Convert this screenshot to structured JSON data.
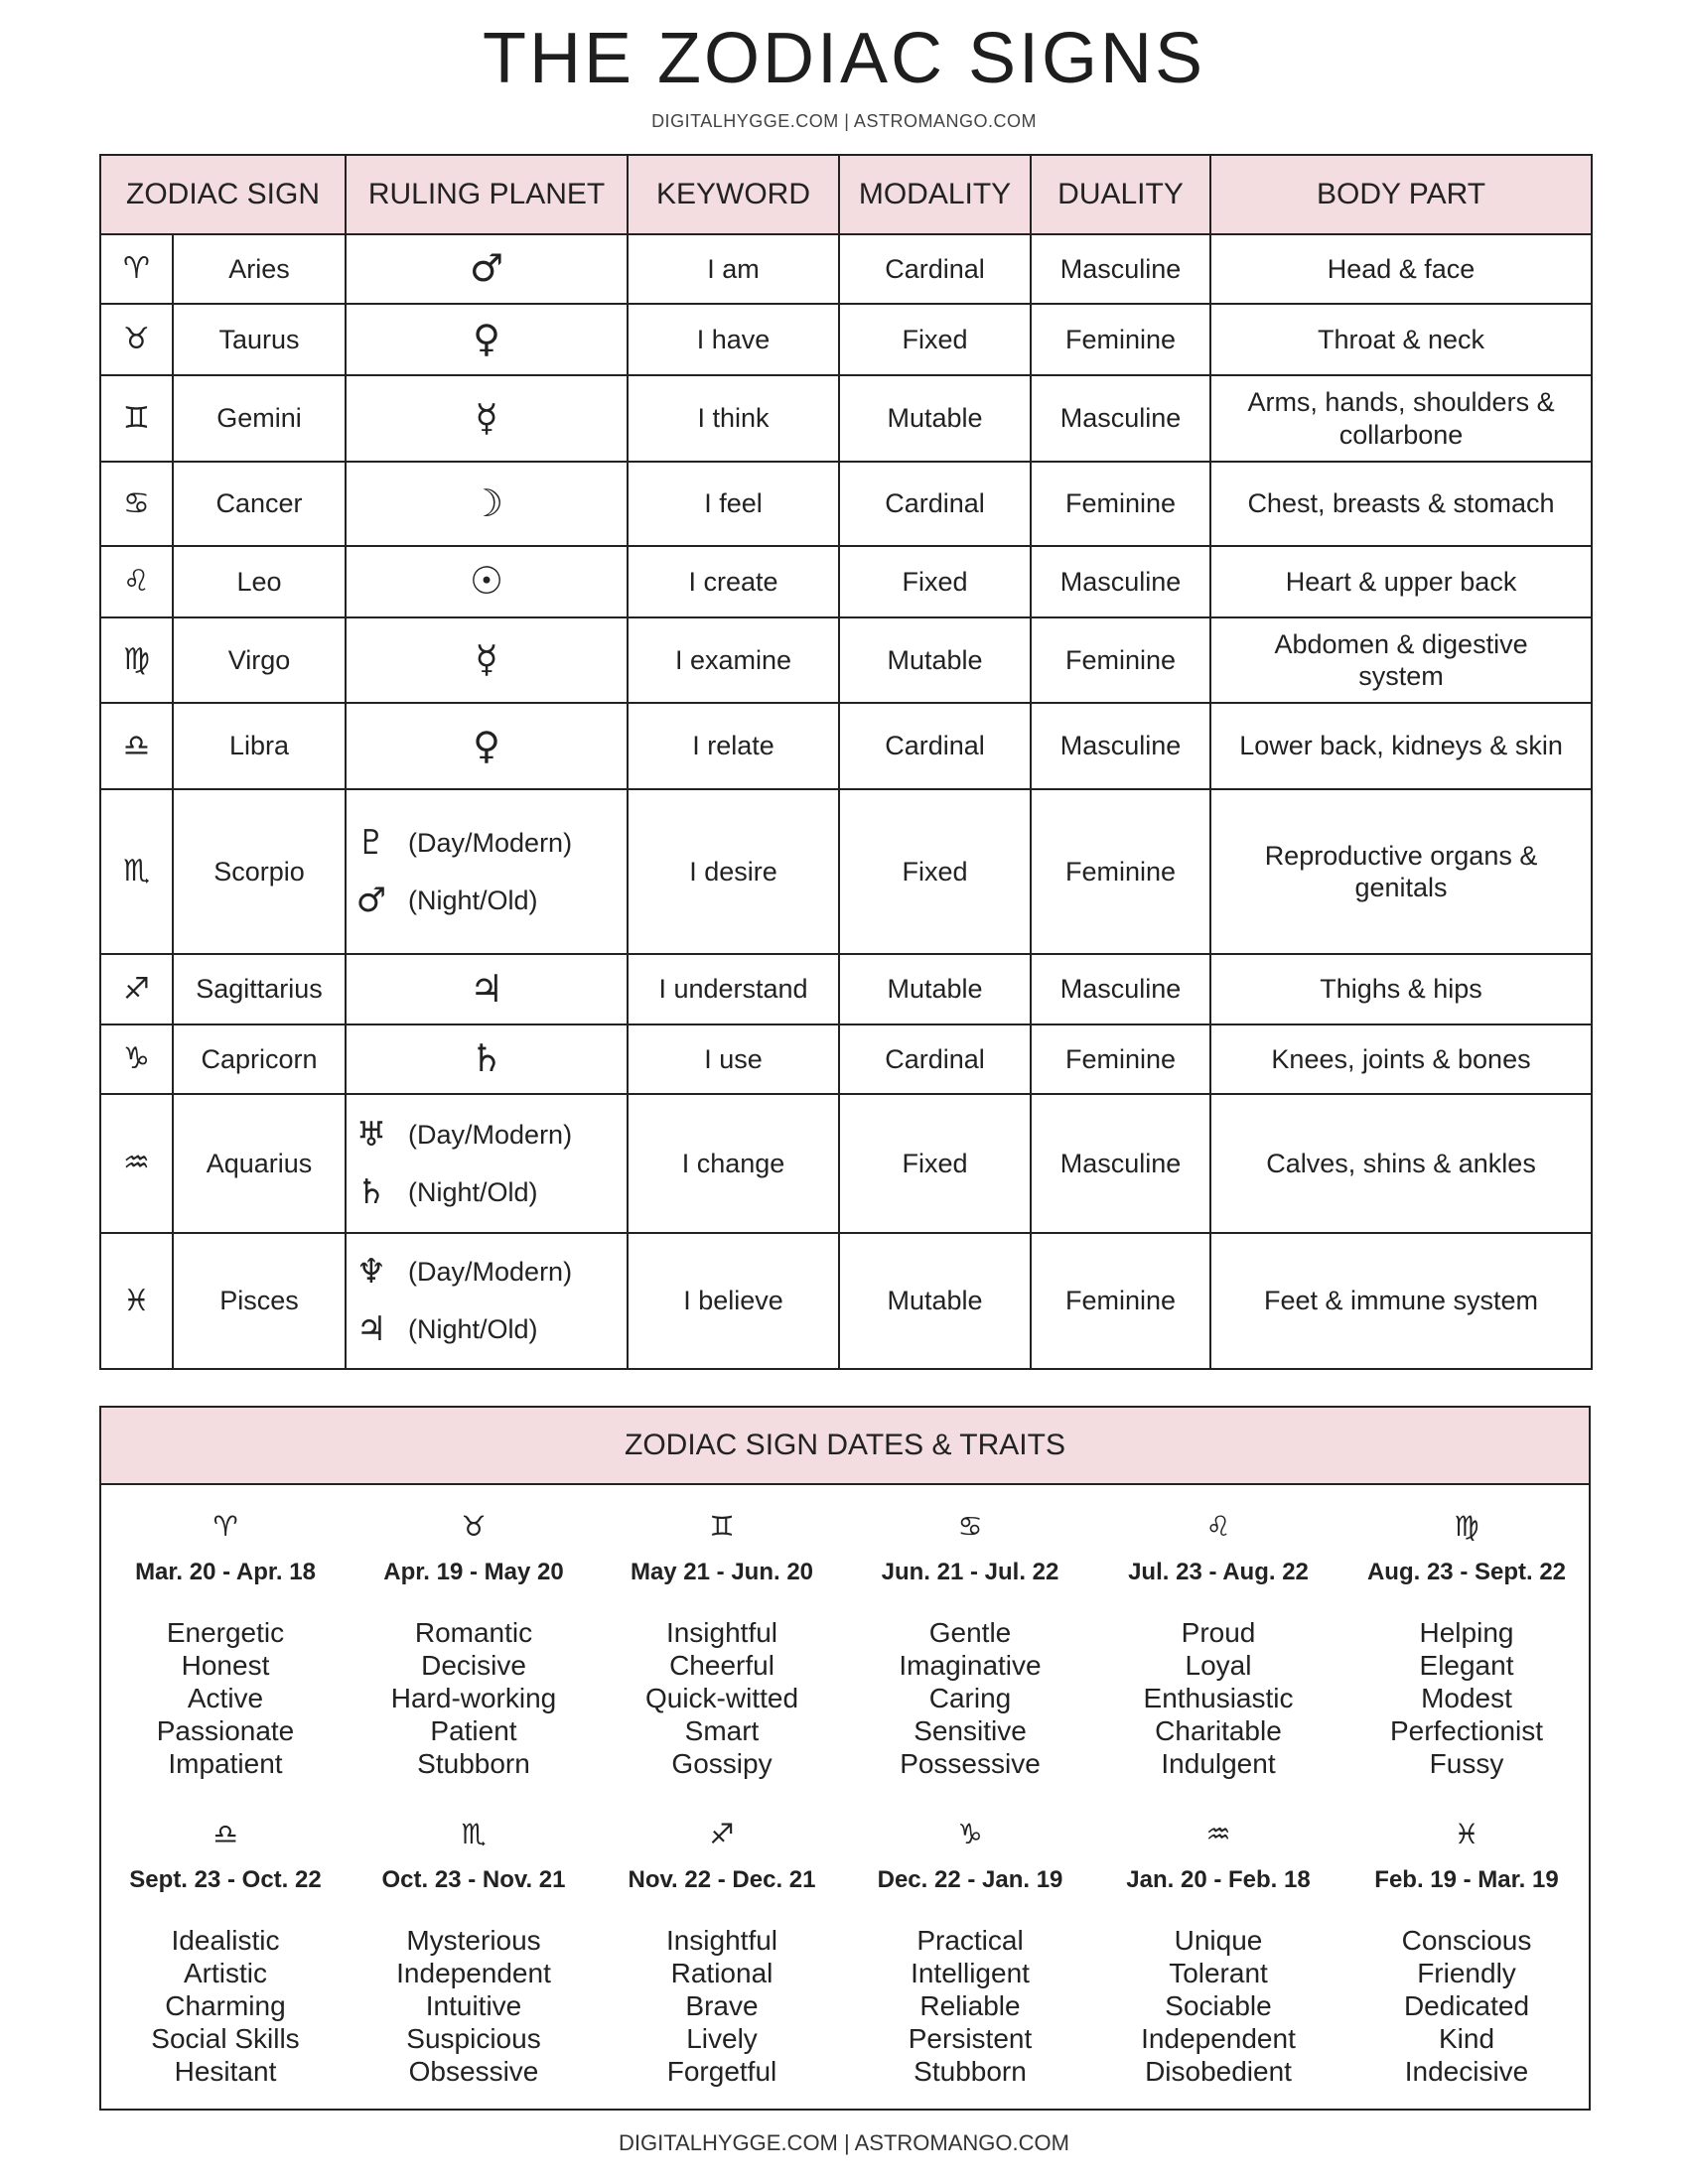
{
  "title": "THE ZODIAC SIGNS",
  "subtitle": "DIGITALHYGGE.COM | ASTROMANGO.COM",
  "table": {
    "headers": [
      "ZODIAC SIGN",
      "RULING PLANET",
      "KEYWORD",
      "MODALITY",
      "DUALITY",
      "BODY PART"
    ],
    "rows": [
      {
        "glyph": "♈︎",
        "sign": "Aries",
        "planets": [
          {
            "glyph": "♂"
          }
        ],
        "keyword": "I am",
        "modality": "Cardinal",
        "duality": "Masculine",
        "body": "Head & face"
      },
      {
        "glyph": "♉︎",
        "sign": "Taurus",
        "planets": [
          {
            "glyph": "♀"
          }
        ],
        "keyword": "I have",
        "modality": "Fixed",
        "duality": "Feminine",
        "body": "Throat & neck"
      },
      {
        "glyph": "♊︎",
        "sign": "Gemini",
        "planets": [
          {
            "glyph": "☿"
          }
        ],
        "keyword": "I think",
        "modality": "Mutable",
        "duality": "Masculine",
        "body": "Arms, hands, shoulders & collarbone"
      },
      {
        "glyph": "♋︎",
        "sign": "Cancer",
        "planets": [
          {
            "glyph": "☽"
          }
        ],
        "keyword": "I feel",
        "modality": "Cardinal",
        "duality": "Feminine",
        "body": "Chest, breasts & stomach"
      },
      {
        "glyph": "♌︎",
        "sign": "Leo",
        "planets": [
          {
            "glyph": "☉"
          }
        ],
        "keyword": "I create",
        "modality": "Fixed",
        "duality": "Masculine",
        "body": "Heart & upper back"
      },
      {
        "glyph": "♍︎",
        "sign": "Virgo",
        "planets": [
          {
            "glyph": "☿"
          }
        ],
        "keyword": "I examine",
        "modality": "Mutable",
        "duality": "Feminine",
        "body": "Abdomen & digestive system"
      },
      {
        "glyph": "♎︎",
        "sign": "Libra",
        "planets": [
          {
            "glyph": "♀"
          }
        ],
        "keyword": "I relate",
        "modality": "Cardinal",
        "duality": "Masculine",
        "body": "Lower back, kidneys & skin"
      },
      {
        "glyph": "♏︎",
        "sign": "Scorpio",
        "planets": [
          {
            "glyph": "♇",
            "label": "(Day/Modern)"
          },
          {
            "glyph": "♂",
            "label": "(Night/Old)"
          }
        ],
        "keyword": "I desire",
        "modality": "Fixed",
        "duality": "Feminine",
        "body": "Reproductive organs & genitals"
      },
      {
        "glyph": "♐︎",
        "sign": "Sagittarius",
        "planets": [
          {
            "glyph": "♃"
          }
        ],
        "keyword": "I understand",
        "modality": "Mutable",
        "duality": "Masculine",
        "body": "Thighs & hips"
      },
      {
        "glyph": "♑︎",
        "sign": "Capricorn",
        "planets": [
          {
            "glyph": "♄"
          }
        ],
        "keyword": "I use",
        "modality": "Cardinal",
        "duality": "Feminine",
        "body": "Knees, joints & bones"
      },
      {
        "glyph": "♒︎",
        "sign": "Aquarius",
        "planets": [
          {
            "glyph": "♅",
            "label": "(Day/Modern)"
          },
          {
            "glyph": "♄",
            "label": "(Night/Old)"
          }
        ],
        "keyword": "I change",
        "modality": "Fixed",
        "duality": "Masculine",
        "body": "Calves, shins & ankles"
      },
      {
        "glyph": "♓︎",
        "sign": "Pisces",
        "planets": [
          {
            "glyph": "♆",
            "label": "(Day/Modern)"
          },
          {
            "glyph": "♃",
            "label": "(Night/Old)"
          }
        ],
        "keyword": "I believe",
        "modality": "Mutable",
        "duality": "Feminine",
        "body": "Feet & immune system"
      }
    ]
  },
  "traits": {
    "title": "ZODIAC SIGN DATES & TRAITS",
    "signs": [
      {
        "glyph": "♈︎",
        "dates": "Mar. 20 - Apr. 18",
        "traits": [
          "Energetic",
          "Honest",
          "Active",
          "Passionate",
          "Impatient"
        ]
      },
      {
        "glyph": "♉︎",
        "dates": "Apr. 19 - May 20",
        "traits": [
          "Romantic",
          "Decisive",
          "Hard-working",
          "Patient",
          "Stubborn"
        ]
      },
      {
        "glyph": "♊︎",
        "dates": "May 21 - Jun. 20",
        "traits": [
          "Insightful",
          "Cheerful",
          "Quick-witted",
          "Smart",
          "Gossipy"
        ]
      },
      {
        "glyph": "♋︎",
        "dates": "Jun. 21 - Jul. 22",
        "traits": [
          "Gentle",
          "Imaginative",
          "Caring",
          "Sensitive",
          "Possessive"
        ]
      },
      {
        "glyph": "♌︎",
        "dates": "Jul. 23 - Aug. 22",
        "traits": [
          "Proud",
          "Loyal",
          "Enthusiastic",
          "Charitable",
          "Indulgent"
        ]
      },
      {
        "glyph": "♍︎",
        "dates": "Aug. 23 - Sept. 22",
        "traits": [
          "Helping",
          "Elegant",
          "Modest",
          "Perfectionist",
          "Fussy"
        ]
      },
      {
        "glyph": "♎︎",
        "dates": "Sept. 23 - Oct. 22",
        "traits": [
          "Idealistic",
          "Artistic",
          "Charming",
          "Social Skills",
          "Hesitant"
        ]
      },
      {
        "glyph": "♏︎",
        "dates": "Oct. 23 - Nov. 21",
        "traits": [
          "Mysterious",
          "Independent",
          "Intuitive",
          "Suspicious",
          "Obsessive"
        ]
      },
      {
        "glyph": "♐︎",
        "dates": "Nov. 22 - Dec. 21",
        "traits": [
          "Insightful",
          "Rational",
          "Brave",
          "Lively",
          "Forgetful"
        ]
      },
      {
        "glyph": "♑︎",
        "dates": "Dec. 22 - Jan. 19",
        "traits": [
          "Practical",
          "Intelligent",
          "Reliable",
          "Persistent",
          "Stubborn"
        ]
      },
      {
        "glyph": "♒︎",
        "dates": "Jan. 20 - Feb. 18",
        "traits": [
          "Unique",
          "Tolerant",
          "Sociable",
          "Independent",
          "Disobedient"
        ]
      },
      {
        "glyph": "♓︎",
        "dates": "Feb. 19 - Mar. 19",
        "traits": [
          "Conscious",
          "Friendly",
          "Dedicated",
          "Kind",
          "Indecisive"
        ]
      }
    ]
  },
  "footer": "DIGITALHYGGE.COM | ASTROMANGO.COM",
  "colors": {
    "header_bg": "#f3dde0",
    "border": "#222222"
  }
}
